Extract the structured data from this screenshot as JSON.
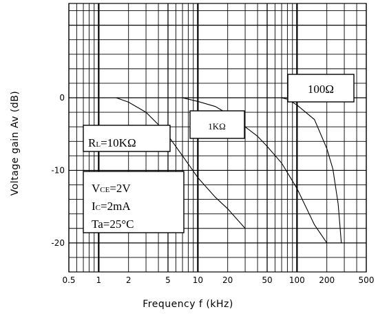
{
  "chart_data": {
    "type": "line",
    "xscale": "log",
    "xlim": [
      0.5,
      500
    ],
    "ylim": [
      -24,
      13
    ],
    "grid": true,
    "xlabel": "Frequency f (kHz)",
    "ylabel": "Voltage gain Av (dB)",
    "x_ticks": [
      {
        "value": 0.5,
        "label": "0.5"
      },
      {
        "value": 1,
        "label": "1"
      },
      {
        "value": 2,
        "label": "2"
      },
      {
        "value": 5,
        "label": "5"
      },
      {
        "value": 10,
        "label": "10"
      },
      {
        "value": 20,
        "label": "20"
      },
      {
        "value": 50,
        "label": "50"
      },
      {
        "value": 100,
        "label": "100"
      },
      {
        "value": 200,
        "label": "200"
      },
      {
        "value": 500,
        "label": "500"
      }
    ],
    "y_ticks": [
      {
        "value": 0,
        "label": "0"
      },
      {
        "value": -10,
        "label": "-10"
      },
      {
        "value": -20,
        "label": "-20"
      }
    ],
    "series": [
      {
        "name": "RL=10KΩ",
        "x": [
          1.5,
          2,
          3,
          4,
          5,
          7,
          10,
          15,
          20,
          30
        ],
        "y": [
          0,
          -0.6,
          -2,
          -3.7,
          -5.2,
          -8,
          -11,
          -13.7,
          -15.3,
          -18
        ]
      },
      {
        "name": "1KΩ",
        "x": [
          7,
          10,
          15,
          20,
          30,
          40,
          50,
          70,
          100,
          150,
          200
        ],
        "y": [
          0,
          -0.5,
          -1.2,
          -2.2,
          -4,
          -5.3,
          -6.7,
          -9,
          -12.5,
          -17.5,
          -20
        ]
      },
      {
        "name": "100Ω",
        "x": [
          70,
          80,
          100,
          150,
          200,
          230,
          260,
          280
        ],
        "y": [
          0,
          -0.2,
          -1,
          -3,
          -7,
          -9.8,
          -14.6,
          -20
        ]
      }
    ],
    "annotations": {
      "rl_10k": {
        "prefix": "R",
        "sub": "L",
        "suffix": "=10KΩ"
      },
      "rl_1k": "1KΩ",
      "rl_100": "100Ω",
      "conditions": [
        {
          "prefix": "V",
          "sub": "CE",
          "suffix": "=2V"
        },
        {
          "prefix": "I",
          "sub": "C",
          "suffix": "=2mA"
        },
        {
          "prefix": "Ta",
          "sub": "",
          "suffix": "=25°C"
        }
      ]
    }
  }
}
